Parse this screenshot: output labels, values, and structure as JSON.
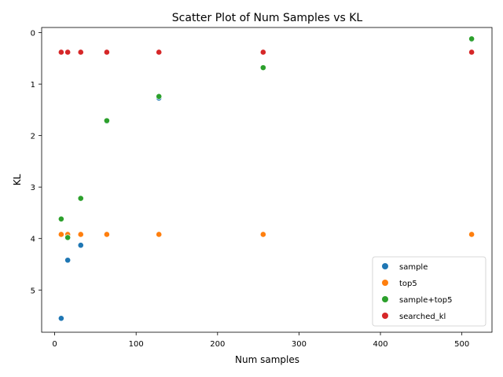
{
  "chart_data": {
    "type": "scatter",
    "title": "Scatter Plot of Num Samples vs KL",
    "xlabel": "Num samples",
    "ylabel": "KL",
    "xlim": [
      -16,
      537
    ],
    "ylim": [
      5.82,
      -0.1
    ],
    "y_inverted": true,
    "xticks": [
      0,
      100,
      200,
      300,
      400,
      500
    ],
    "yticks": [
      0,
      1,
      2,
      3,
      4,
      5
    ],
    "grid": false,
    "legend_position": "bottom-right",
    "series": [
      {
        "name": "sample",
        "color": "#1f77b4",
        "points": [
          [
            8,
            5.55
          ],
          [
            16,
            4.42
          ],
          [
            32,
            4.13
          ],
          [
            64,
            1.72
          ],
          [
            128,
            1.27
          ],
          [
            256,
            0.68
          ],
          [
            512,
            0.13
          ]
        ]
      },
      {
        "name": "top5",
        "color": "#ff7f0e",
        "points": [
          [
            8,
            3.92
          ],
          [
            16,
            3.92
          ],
          [
            32,
            3.92
          ],
          [
            64,
            3.92
          ],
          [
            128,
            3.92
          ],
          [
            256,
            3.92
          ],
          [
            512,
            3.92
          ]
        ]
      },
      {
        "name": "sample+top5",
        "color": "#2ca02c",
        "points": [
          [
            8,
            3.62
          ],
          [
            16,
            3.98
          ],
          [
            32,
            3.22
          ],
          [
            64,
            1.71
          ],
          [
            128,
            1.24
          ],
          [
            256,
            0.68
          ],
          [
            512,
            0.12
          ]
        ]
      },
      {
        "name": "searched_kl",
        "color": "#d62728",
        "points": [
          [
            8,
            0.38
          ],
          [
            16,
            0.38
          ],
          [
            32,
            0.38
          ],
          [
            64,
            0.38
          ],
          [
            128,
            0.38
          ],
          [
            256,
            0.38
          ],
          [
            512,
            0.38
          ]
        ]
      }
    ]
  }
}
